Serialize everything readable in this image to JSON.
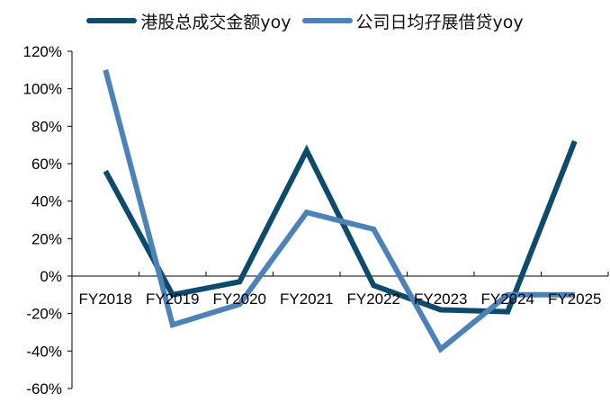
{
  "chart_data": {
    "type": "line",
    "categories": [
      "FY2018",
      "FY2019",
      "FY2020",
      "FY2021",
      "FY2022",
      "FY2023",
      "FY2024",
      "FY2025"
    ],
    "series": [
      {
        "name": "港股总成交金额yoy",
        "color": "#0d4a6b",
        "values": [
          56,
          -10,
          -3,
          67,
          -5,
          -18,
          -19,
          72
        ]
      },
      {
        "name": "公司日均孖展借贷yoy",
        "color": "#4d82b8",
        "values": [
          110,
          -26,
          -15,
          34,
          25,
          -39,
          -10,
          -10
        ]
      }
    ],
    "y_ticks": [
      "120%",
      "100%",
      "80%",
      "60%",
      "40%",
      "20%",
      "0%",
      "-20%",
      "-40%",
      "-60%"
    ],
    "ylim": [
      -60,
      120
    ],
    "y_tick_step": 20,
    "y_unit": "%",
    "title": "",
    "xlabel": "",
    "ylabel": "",
    "grid": false,
    "legend_position": "top"
  }
}
